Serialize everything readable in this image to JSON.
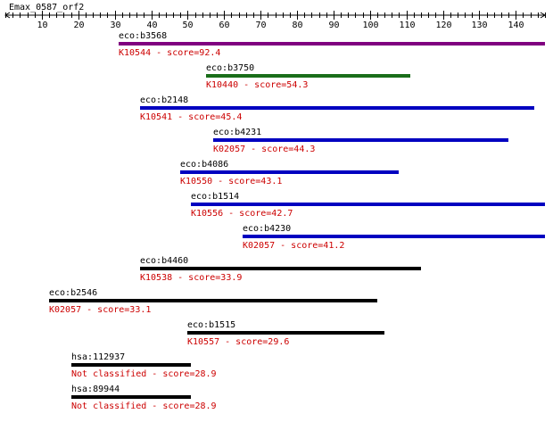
{
  "query_name": "Emax_0587_orf2",
  "axis": {
    "min": 0,
    "max": 148,
    "major_ticks": [
      10,
      20,
      30,
      40,
      50,
      60,
      70,
      80,
      90,
      100,
      110,
      120,
      130,
      140
    ],
    "minor_step": 2
  },
  "colors": {
    "label_text": "#000000",
    "score_text": "#cc0000",
    "axis": "#000000"
  },
  "hits": [
    {
      "gene": "eco:b3568",
      "ko": "K10544",
      "score_text": "K10544 - score=92.4",
      "start": 31,
      "end": 148,
      "color": "#800080"
    },
    {
      "gene": "eco:b3750",
      "ko": "K10440",
      "score_text": "K10440 - score=54.3",
      "start": 55,
      "end": 111,
      "color": "#1a6e1a"
    },
    {
      "gene": "eco:b2148",
      "ko": "K10541",
      "score_text": "K10541 - score=45.4",
      "start": 37,
      "end": 145,
      "color": "#0000c0"
    },
    {
      "gene": "eco:b4231",
      "ko": "K02057",
      "score_text": "K02057 - score=44.3",
      "start": 57,
      "end": 138,
      "color": "#0000c0"
    },
    {
      "gene": "eco:b4086",
      "ko": "K10550",
      "score_text": "K10550 - score=43.1",
      "start": 48,
      "end": 108,
      "color": "#0000c0"
    },
    {
      "gene": "eco:b1514",
      "ko": "K10556",
      "score_text": "K10556 - score=42.7",
      "start": 51,
      "end": 148,
      "color": "#0000c0"
    },
    {
      "gene": "eco:b4230",
      "ko": "K02057",
      "score_text": "K02057 - score=41.2",
      "start": 65,
      "end": 148,
      "color": "#0000c0"
    },
    {
      "gene": "eco:b4460",
      "ko": "K10538",
      "score_text": "K10538 - score=33.9",
      "start": 37,
      "end": 114,
      "color": "#000000"
    },
    {
      "gene": "eco:b2546",
      "ko": "K02057",
      "score_text": "K02057 - score=33.1",
      "start": 12,
      "end": 102,
      "color": "#000000"
    },
    {
      "gene": "eco:b1515",
      "ko": "K10557",
      "score_text": "K10557 - score=29.6",
      "start": 50,
      "end": 104,
      "color": "#000000"
    },
    {
      "gene": "hsa:112937",
      "ko": "Not classified",
      "score_text": "Not classified - score=28.9",
      "start": 18,
      "end": 51,
      "color": "#000000"
    },
    {
      "gene": "hsa:89944",
      "ko": "Not classified",
      "score_text": "Not classified - score=28.9",
      "start": 18,
      "end": 51,
      "color": "#000000"
    }
  ]
}
